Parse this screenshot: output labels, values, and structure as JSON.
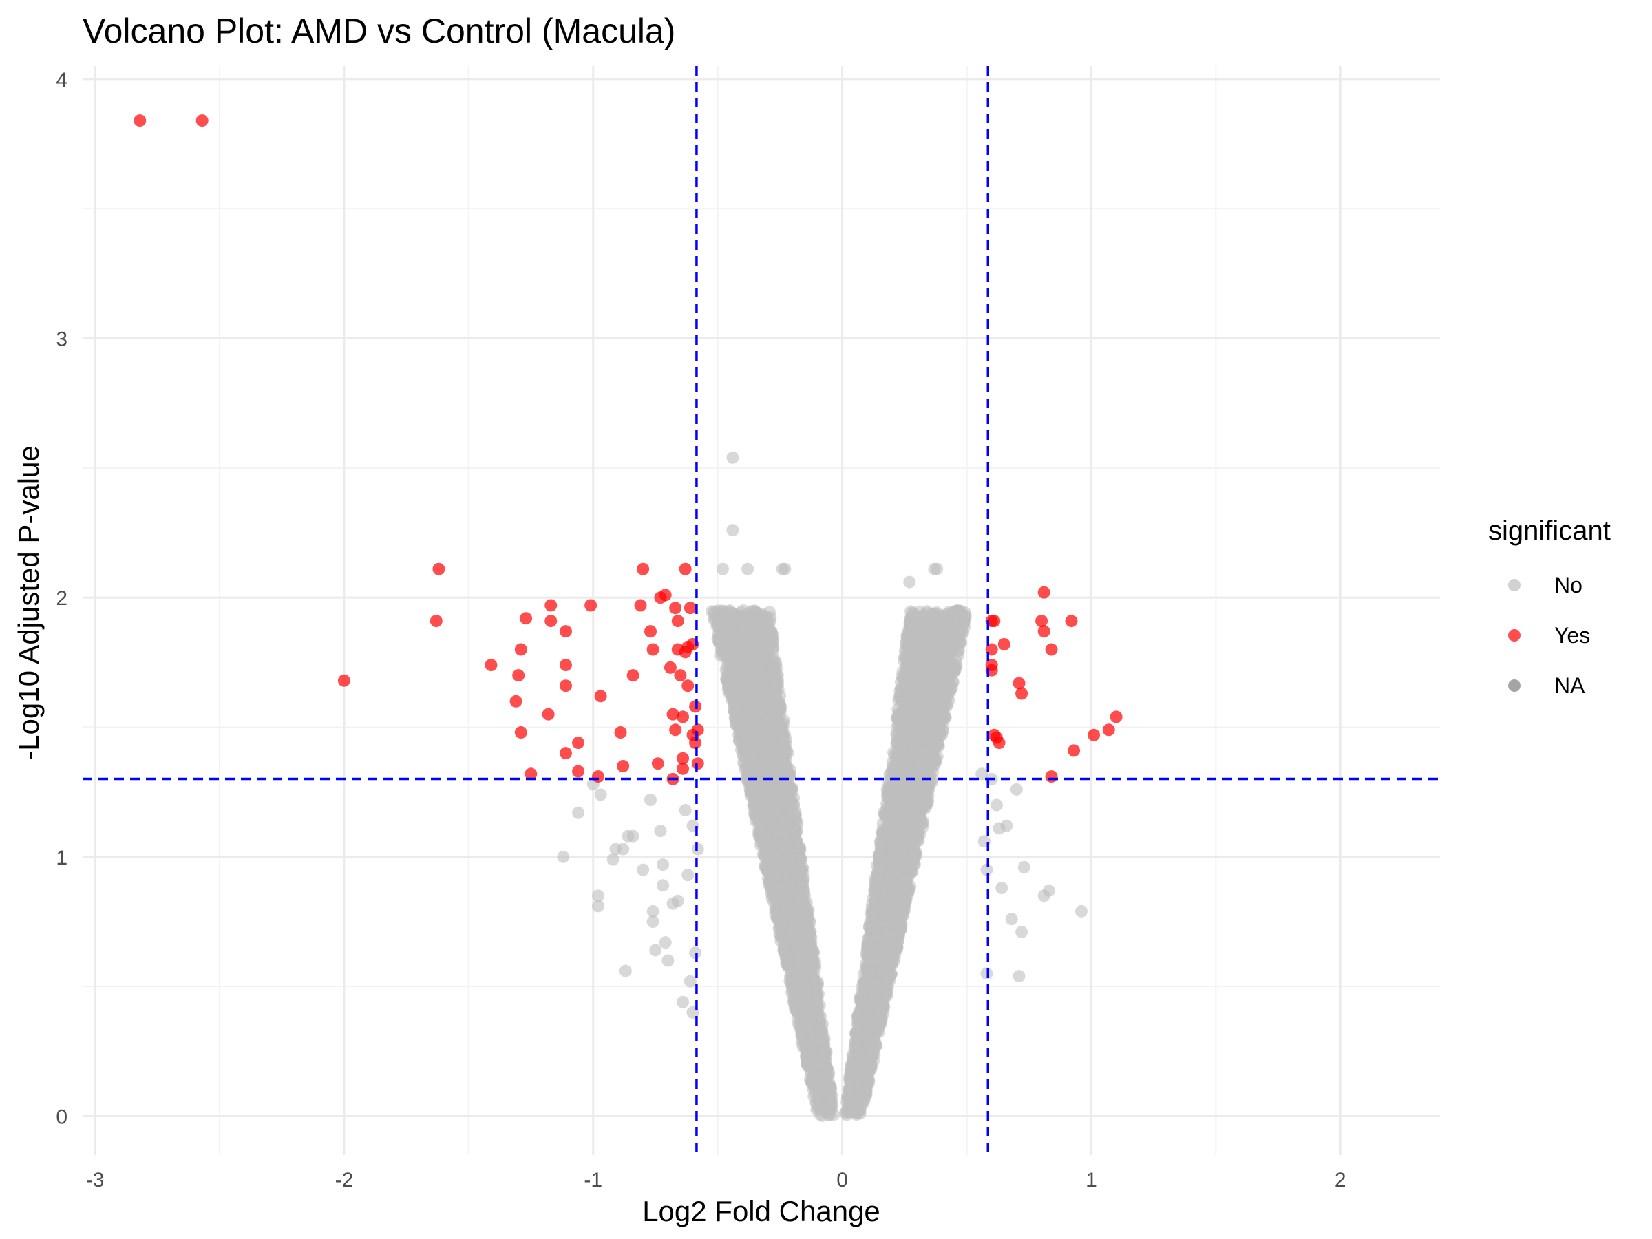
{
  "chart_data": {
    "type": "scatter",
    "title": "Volcano Plot: AMD vs Control (Macula)",
    "xlabel": "Log2 Fold Change",
    "ylabel": "-Log10 Adjusted P-value",
    "xlim": [
      -3.05,
      2.4
    ],
    "ylim": [
      -0.15,
      4.05
    ],
    "x_ticks": [
      -3,
      -2,
      -1,
      0,
      1,
      2
    ],
    "y_ticks": [
      0,
      1,
      2,
      3,
      4
    ],
    "grid": true,
    "thresholds": {
      "log2fc": [
        -0.585,
        0.585
      ],
      "neg_log10_padj": 1.301,
      "line_color": "#0000ff"
    },
    "legend": {
      "title": "significant",
      "placement": "right",
      "entries": [
        {
          "label": "No",
          "color": "#bebebe"
        },
        {
          "label": "Yes",
          "color": "#ff0000"
        },
        {
          "label": "NA",
          "color": "#7f7f7f"
        }
      ]
    },
    "series": [
      {
        "name": "Yes",
        "color": "#ff0000",
        "points": [
          [
            -2.82,
            3.84
          ],
          [
            -2.57,
            3.84
          ],
          [
            -2.0,
            1.68
          ],
          [
            -1.62,
            2.11
          ],
          [
            -1.63,
            1.91
          ],
          [
            -1.41,
            1.74
          ],
          [
            -1.31,
            1.6
          ],
          [
            -1.3,
            1.7
          ],
          [
            -1.29,
            1.8
          ],
          [
            -1.29,
            1.48
          ],
          [
            -1.27,
            1.92
          ],
          [
            -1.25,
            1.32
          ],
          [
            -1.18,
            1.55
          ],
          [
            -1.17,
            1.97
          ],
          [
            -1.17,
            1.91
          ],
          [
            -1.11,
            1.87
          ],
          [
            -1.11,
            1.74
          ],
          [
            -1.11,
            1.66
          ],
          [
            -1.11,
            1.4
          ],
          [
            -1.06,
            1.44
          ],
          [
            -1.06,
            1.33
          ],
          [
            -1.01,
            1.97
          ],
          [
            -0.98,
            1.31
          ],
          [
            -0.97,
            1.62
          ],
          [
            -0.89,
            1.48
          ],
          [
            -0.88,
            1.35
          ],
          [
            -0.84,
            1.7
          ],
          [
            -0.81,
            1.97
          ],
          [
            -0.8,
            2.11
          ],
          [
            -0.77,
            1.87
          ],
          [
            -0.76,
            1.8
          ],
          [
            -0.74,
            1.36
          ],
          [
            -0.73,
            2.0
          ],
          [
            -0.71,
            2.01
          ],
          [
            -0.69,
            1.73
          ],
          [
            -0.68,
            1.55
          ],
          [
            -0.68,
            1.3
          ],
          [
            -0.67,
            1.96
          ],
          [
            -0.67,
            1.49
          ],
          [
            -0.66,
            1.91
          ],
          [
            -0.66,
            1.8
          ],
          [
            -0.65,
            1.7
          ],
          [
            -0.64,
            1.54
          ],
          [
            -0.64,
            1.38
          ],
          [
            -0.64,
            1.34
          ],
          [
            -0.63,
            2.11
          ],
          [
            -0.63,
            1.79
          ],
          [
            -0.62,
            1.81
          ],
          [
            -0.62,
            1.66
          ],
          [
            -0.61,
            1.96
          ],
          [
            -0.6,
            1.82
          ],
          [
            -0.6,
            1.47
          ],
          [
            -0.59,
            1.44
          ],
          [
            -0.59,
            1.58
          ],
          [
            -0.58,
            1.49
          ],
          [
            -0.58,
            1.36
          ],
          [
            0.6,
            1.91
          ],
          [
            0.6,
            1.8
          ],
          [
            0.6,
            1.74
          ],
          [
            0.6,
            1.72
          ],
          [
            0.61,
            1.91
          ],
          [
            0.61,
            1.47
          ],
          [
            0.62,
            1.46
          ],
          [
            0.63,
            1.44
          ],
          [
            0.65,
            1.82
          ],
          [
            0.71,
            1.67
          ],
          [
            0.72,
            1.63
          ],
          [
            0.8,
            1.91
          ],
          [
            0.81,
            1.87
          ],
          [
            0.81,
            2.02
          ],
          [
            0.84,
            1.8
          ],
          [
            0.84,
            1.31
          ],
          [
            0.92,
            1.91
          ],
          [
            0.93,
            1.41
          ],
          [
            1.01,
            1.47
          ],
          [
            1.07,
            1.49
          ],
          [
            1.1,
            1.54
          ]
        ]
      },
      {
        "name": "No",
        "color": "#bebebe",
        "points": [
          [
            -0.44,
            2.54
          ],
          [
            -0.44,
            2.26
          ],
          [
            -0.48,
            2.11
          ],
          [
            -0.38,
            2.11
          ],
          [
            -0.23,
            2.11
          ],
          [
            -0.24,
            2.11
          ],
          [
            0.38,
            2.11
          ],
          [
            0.27,
            2.06
          ],
          [
            0.37,
            2.11
          ],
          [
            -1.12,
            1.0
          ],
          [
            -1.06,
            1.17
          ],
          [
            -1.0,
            1.28
          ],
          [
            -0.98,
            0.85
          ],
          [
            -0.98,
            0.81
          ],
          [
            -0.97,
            1.24
          ],
          [
            -0.92,
            0.99
          ],
          [
            -0.91,
            1.03
          ],
          [
            -0.88,
            1.03
          ],
          [
            -0.87,
            0.56
          ],
          [
            -0.86,
            1.08
          ],
          [
            -0.84,
            1.08
          ],
          [
            -0.8,
            0.95
          ],
          [
            -0.77,
            1.22
          ],
          [
            -0.76,
            0.79
          ],
          [
            -0.76,
            0.75
          ],
          [
            -0.75,
            0.64
          ],
          [
            -0.73,
            1.1
          ],
          [
            -0.72,
            0.97
          ],
          [
            -0.72,
            0.89
          ],
          [
            -0.71,
            0.67
          ],
          [
            -0.7,
            0.6
          ],
          [
            -0.68,
            0.82
          ],
          [
            -0.66,
            0.83
          ],
          [
            -0.64,
            0.44
          ],
          [
            -0.63,
            1.18
          ],
          [
            -0.62,
            0.93
          ],
          [
            -0.61,
            0.52
          ],
          [
            -0.6,
            1.12
          ],
          [
            -0.6,
            0.4
          ],
          [
            -0.59,
            0.63
          ],
          [
            -0.58,
            1.03
          ],
          [
            0.56,
            1.32
          ],
          [
            0.57,
            1.06
          ],
          [
            0.58,
            0.95
          ],
          [
            0.58,
            0.55
          ],
          [
            0.6,
            1.3
          ],
          [
            0.62,
            1.2
          ],
          [
            0.63,
            1.11
          ],
          [
            0.64,
            0.88
          ],
          [
            0.66,
            1.12
          ],
          [
            0.68,
            0.76
          ],
          [
            0.7,
            1.26
          ],
          [
            0.71,
            0.54
          ],
          [
            0.72,
            0.71
          ],
          [
            0.73,
            0.96
          ],
          [
            0.81,
            0.85
          ],
          [
            0.83,
            0.87
          ],
          [
            0.96,
            0.79
          ],
          [
            -0.36,
            1.7
          ],
          [
            -0.3,
            1.4
          ],
          [
            -0.26,
            1.1
          ],
          [
            -0.22,
            0.8
          ],
          [
            -0.18,
            0.5
          ],
          [
            0.18,
            0.5
          ],
          [
            0.22,
            0.8
          ],
          [
            0.26,
            1.1
          ],
          [
            0.3,
            1.4
          ],
          [
            0.34,
            1.7
          ]
        ]
      }
    ]
  }
}
